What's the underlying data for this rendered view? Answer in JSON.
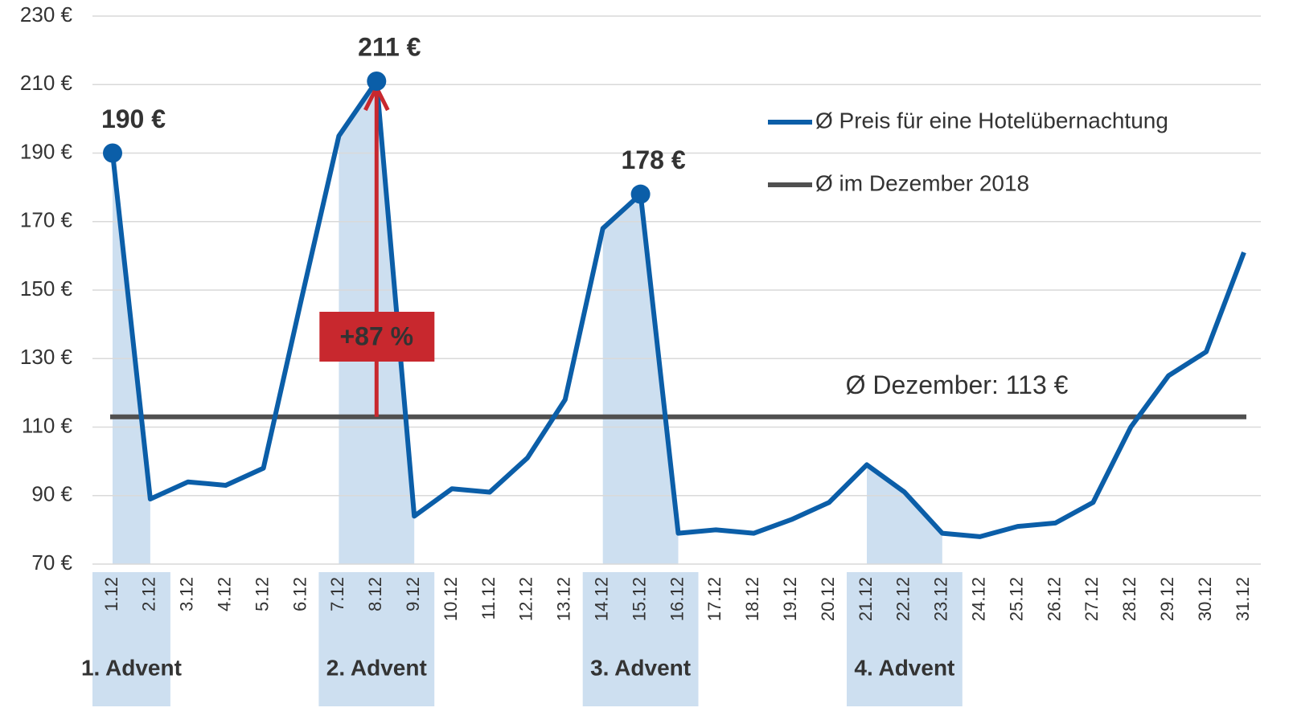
{
  "chart_data": {
    "type": "line",
    "categories": [
      "1.12",
      "2.12",
      "3.12",
      "4.12",
      "5.12",
      "6.12",
      "7.12",
      "8.12",
      "9.12",
      "10.12",
      "11.12",
      "12.12",
      "13.12",
      "14.12",
      "15.12",
      "16.12",
      "17.12",
      "18.12",
      "19.12",
      "20.12",
      "21.12",
      "22.12",
      "23.12",
      "24.12",
      "25.12",
      "26.12",
      "27.12",
      "28.12",
      "29.12",
      "30.12",
      "31.12"
    ],
    "series": [
      {
        "name": "Ø Preis für eine Hotelübernachtung",
        "color": "#0b5ea8",
        "values": [
          190,
          89,
          94,
          93,
          98,
          147,
          195,
          211,
          84,
          92,
          91,
          101,
          118,
          168,
          178,
          79,
          80,
          79,
          83,
          88,
          99,
          91,
          79,
          78,
          81,
          82,
          88,
          110,
          125,
          132,
          161
        ],
        "value_labels": [
          "190 €",
          null,
          null,
          null,
          null,
          null,
          null,
          "211 €",
          null,
          null,
          null,
          null,
          null,
          null,
          "178 €",
          null,
          null,
          null,
          null,
          null,
          null,
          null,
          null,
          null,
          null,
          null,
          null,
          null,
          null,
          null,
          null
        ]
      }
    ],
    "reference_line": {
      "name": "Ø im Dezember 2018",
      "value": 113,
      "label": "Ø Dezember: 113 €",
      "color": "#505050"
    },
    "annotation": {
      "label": "+87 %",
      "category": "8.12",
      "color": "#c8282e"
    },
    "highlight_color": "#cddff0",
    "highlights": [
      {
        "label": "1. Advent",
        "start": "1.12",
        "end": "2.12"
      },
      {
        "label": "2. Advent",
        "start": "7.12",
        "end": "9.12"
      },
      {
        "label": "3. Advent",
        "start": "14.12",
        "end": "16.12"
      },
      {
        "label": "4. Advent",
        "start": "21.12",
        "end": "23.12"
      }
    ],
    "ylim": [
      70,
      230
    ],
    "yticks": [
      {
        "value": 70,
        "label": "70 €"
      },
      {
        "value": 90,
        "label": "90 €"
      },
      {
        "value": 110,
        "label": "110 €"
      },
      {
        "value": 130,
        "label": "130 €"
      },
      {
        "value": 150,
        "label": "150 €"
      },
      {
        "value": 170,
        "label": "170 €"
      },
      {
        "value": 190,
        "label": "190 €"
      },
      {
        "value": 210,
        "label": "210 €"
      },
      {
        "value": 230,
        "label": "230 €"
      }
    ],
    "grid": true
  }
}
